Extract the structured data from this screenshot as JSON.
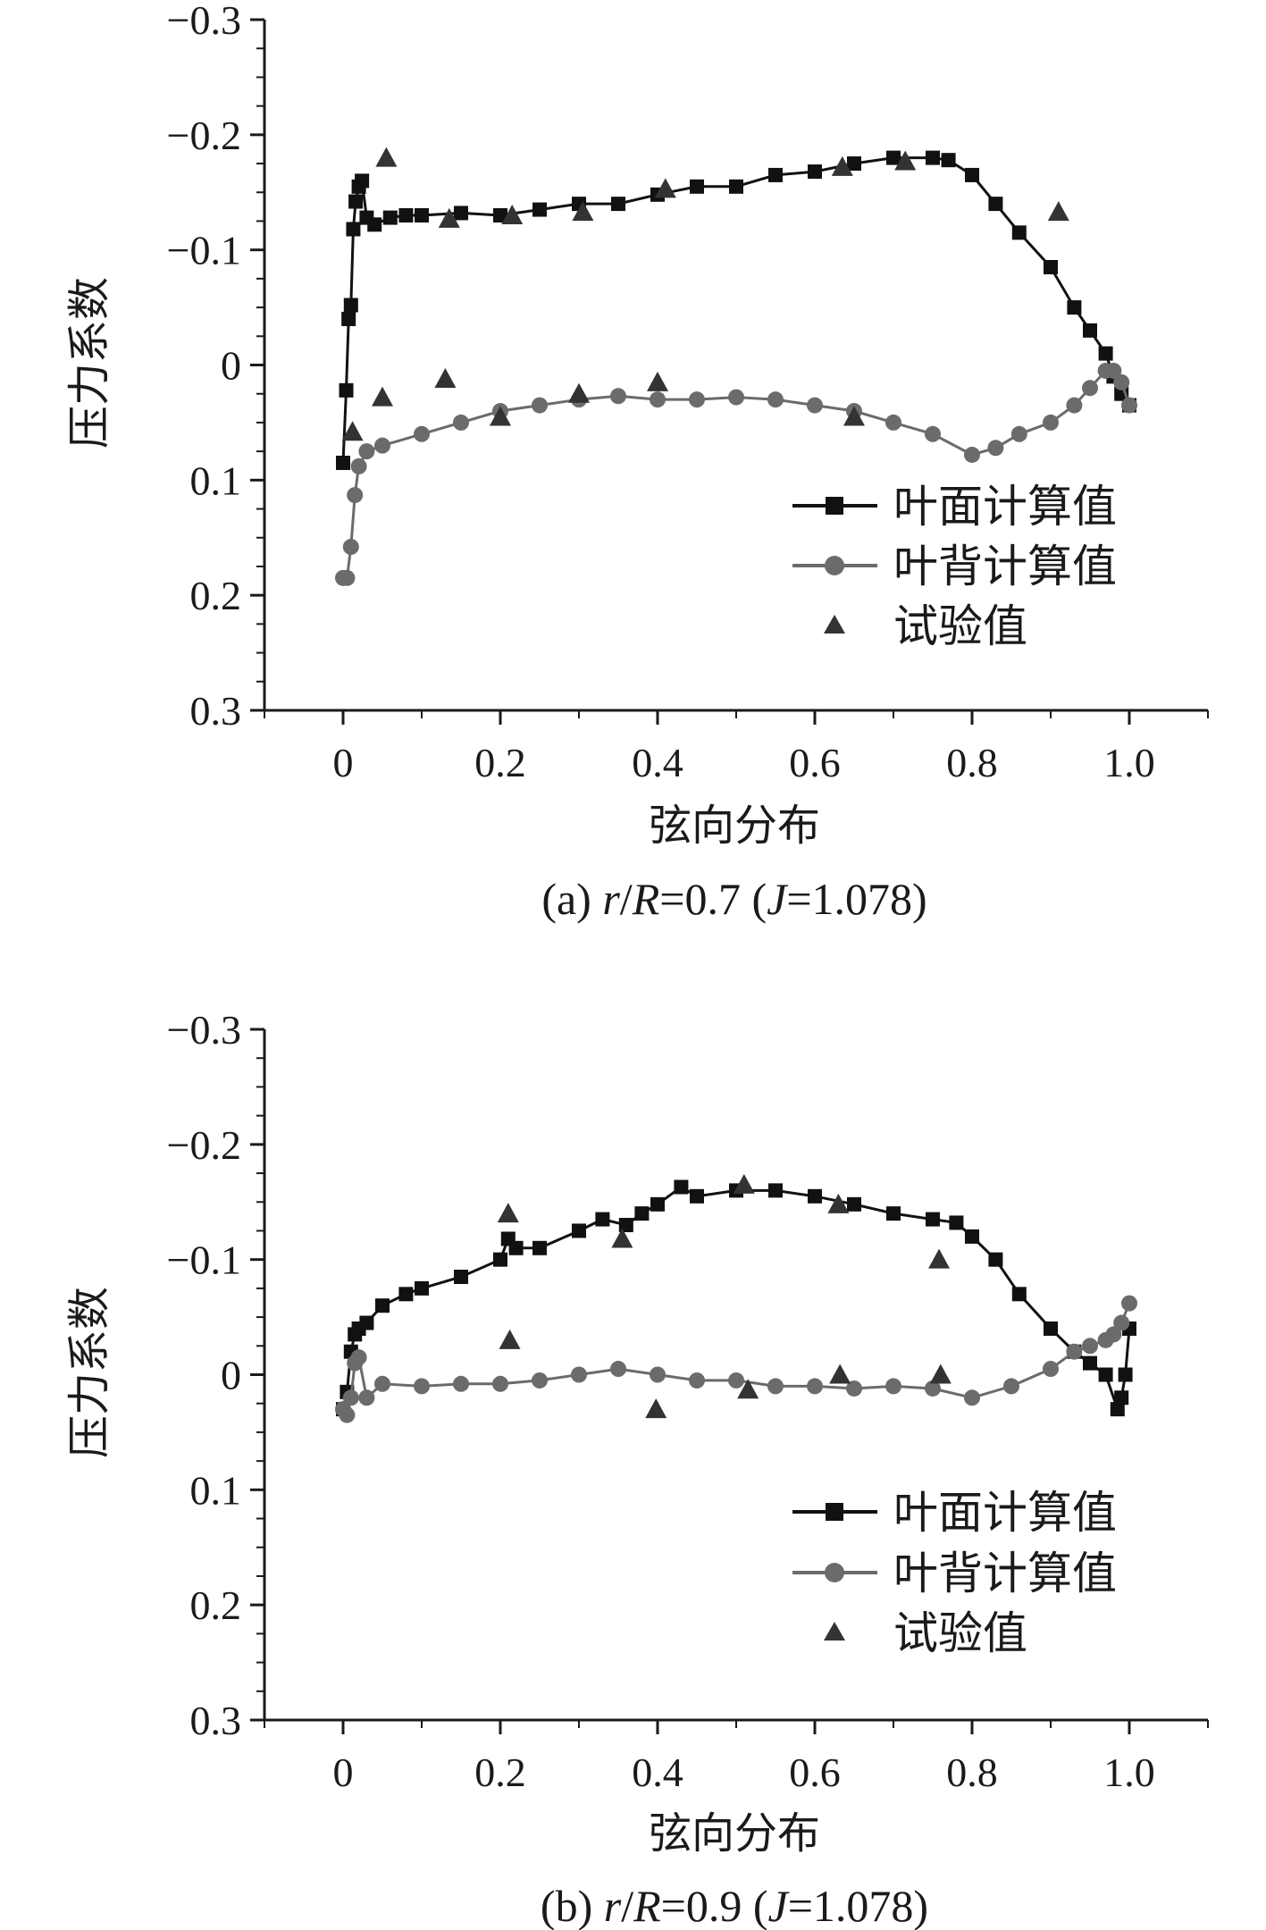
{
  "chart_data": [
    {
      "type": "line",
      "caption": "(a) r/R=0.7 (J=1.078)",
      "xlabel": "弦向分布",
      "ylabel": "压力系数",
      "xlim": [
        -0.1,
        1.1
      ],
      "ylim": [
        -0.3,
        0.3
      ],
      "y_inverted": true,
      "grid": false,
      "legend_position": "lower-right",
      "xticks": [
        {
          "value": 0,
          "label": "0"
        },
        {
          "value": 0.2,
          "label": "0.2"
        },
        {
          "value": 0.4,
          "label": "0.4"
        },
        {
          "value": 0.6,
          "label": "0.6"
        },
        {
          "value": 0.8,
          "label": "0.8"
        },
        {
          "value": 1.0,
          "label": "1.0"
        }
      ],
      "yticks": [
        {
          "value": -0.3,
          "label": "−0.3"
        },
        {
          "value": -0.2,
          "label": "−0.2"
        },
        {
          "value": -0.1,
          "label": "−0.1"
        },
        {
          "value": 0,
          "label": "0"
        },
        {
          "value": 0.1,
          "label": "0.1"
        },
        {
          "value": 0.2,
          "label": "0.2"
        },
        {
          "value": 0.3,
          "label": "0.3"
        }
      ],
      "series": [
        {
          "name": "叶面计算值",
          "marker": "square",
          "color": "#111111",
          "x": [
            0.0,
            0.004,
            0.007,
            0.01,
            0.013,
            0.016,
            0.02,
            0.024,
            0.03,
            0.04,
            0.06,
            0.08,
            0.1,
            0.15,
            0.2,
            0.25,
            0.3,
            0.35,
            0.4,
            0.45,
            0.5,
            0.55,
            0.6,
            0.65,
            0.7,
            0.75,
            0.77,
            0.8,
            0.83,
            0.86,
            0.9,
            0.93,
            0.95,
            0.97,
            0.98,
            0.99,
            1.0
          ],
          "y": [
            0.085,
            0.022,
            -0.04,
            -0.052,
            -0.118,
            -0.142,
            -0.155,
            -0.16,
            -0.128,
            -0.122,
            -0.128,
            -0.13,
            -0.13,
            -0.132,
            -0.13,
            -0.135,
            -0.14,
            -0.14,
            -0.148,
            -0.155,
            -0.155,
            -0.165,
            -0.168,
            -0.175,
            -0.18,
            -0.18,
            -0.178,
            -0.165,
            -0.14,
            -0.115,
            -0.085,
            -0.05,
            -0.03,
            -0.01,
            0.01,
            0.025,
            0.035
          ]
        },
        {
          "name": "叶背计算值",
          "marker": "circle",
          "color": "#6b6b6b",
          "x": [
            0.0,
            0.005,
            0.01,
            0.015,
            0.02,
            0.03,
            0.05,
            0.1,
            0.15,
            0.2,
            0.25,
            0.3,
            0.35,
            0.4,
            0.45,
            0.5,
            0.55,
            0.6,
            0.65,
            0.7,
            0.75,
            0.8,
            0.83,
            0.86,
            0.9,
            0.93,
            0.95,
            0.97,
            0.98,
            0.99,
            1.0
          ],
          "y": [
            0.185,
            0.185,
            0.158,
            0.113,
            0.088,
            0.075,
            0.07,
            0.06,
            0.05,
            0.04,
            0.035,
            0.03,
            0.027,
            0.03,
            0.03,
            0.028,
            0.03,
            0.035,
            0.04,
            0.05,
            0.06,
            0.078,
            0.072,
            0.06,
            0.05,
            0.035,
            0.02,
            0.005,
            0.005,
            0.015,
            0.035
          ]
        },
        {
          "name": "试验值",
          "marker": "triangle",
          "color": "#333333",
          "line": false,
          "x": [
            0.012,
            0.05,
            0.055,
            0.13,
            0.135,
            0.2,
            0.215,
            0.3,
            0.305,
            0.4,
            0.41,
            0.635,
            0.65,
            0.715,
            0.91
          ],
          "y": [
            0.058,
            0.028,
            -0.18,
            0.012,
            -0.127,
            0.045,
            -0.13,
            0.025,
            -0.133,
            0.015,
            -0.153,
            -0.172,
            0.045,
            -0.177,
            -0.133
          ]
        }
      ]
    },
    {
      "type": "line",
      "caption": "(b) r/R=0.9 (J=1.078)",
      "xlabel": "弦向分布",
      "ylabel": "压力系数",
      "xlim": [
        -0.1,
        1.1
      ],
      "ylim": [
        -0.3,
        0.3
      ],
      "y_inverted": true,
      "grid": false,
      "legend_position": "lower-right",
      "xticks": [
        {
          "value": 0,
          "label": "0"
        },
        {
          "value": 0.2,
          "label": "0.2"
        },
        {
          "value": 0.4,
          "label": "0.4"
        },
        {
          "value": 0.6,
          "label": "0.6"
        },
        {
          "value": 0.8,
          "label": "0.8"
        },
        {
          "value": 1.0,
          "label": "1.0"
        }
      ],
      "yticks": [
        {
          "value": -0.3,
          "label": "−0.3"
        },
        {
          "value": -0.2,
          "label": "−0.2"
        },
        {
          "value": -0.1,
          "label": "−0.1"
        },
        {
          "value": 0,
          "label": "0"
        },
        {
          "value": 0.1,
          "label": "0.1"
        },
        {
          "value": 0.2,
          "label": "0.2"
        },
        {
          "value": 0.3,
          "label": "0.3"
        }
      ],
      "series": [
        {
          "name": "叶面计算值",
          "marker": "square",
          "color": "#111111",
          "x": [
            0.0,
            0.005,
            0.01,
            0.015,
            0.02,
            0.03,
            0.05,
            0.08,
            0.1,
            0.15,
            0.2,
            0.21,
            0.22,
            0.25,
            0.3,
            0.33,
            0.36,
            0.38,
            0.4,
            0.43,
            0.45,
            0.5,
            0.55,
            0.6,
            0.65,
            0.7,
            0.75,
            0.78,
            0.8,
            0.83,
            0.86,
            0.9,
            0.93,
            0.95,
            0.97,
            0.985,
            0.99,
            0.995,
            1.0
          ],
          "y": [
            0.03,
            0.015,
            -0.02,
            -0.035,
            -0.04,
            -0.045,
            -0.06,
            -0.07,
            -0.075,
            -0.085,
            -0.1,
            -0.118,
            -0.11,
            -0.11,
            -0.125,
            -0.135,
            -0.13,
            -0.14,
            -0.148,
            -0.163,
            -0.155,
            -0.16,
            -0.16,
            -0.155,
            -0.148,
            -0.14,
            -0.135,
            -0.132,
            -0.12,
            -0.1,
            -0.07,
            -0.04,
            -0.02,
            -0.01,
            0.0,
            0.03,
            0.02,
            0.0,
            -0.04
          ]
        },
        {
          "name": "叶背计算值",
          "marker": "circle",
          "color": "#6b6b6b",
          "x": [
            0.0,
            0.005,
            0.01,
            0.015,
            0.02,
            0.03,
            0.05,
            0.1,
            0.15,
            0.2,
            0.25,
            0.3,
            0.35,
            0.4,
            0.45,
            0.5,
            0.55,
            0.6,
            0.65,
            0.7,
            0.75,
            0.8,
            0.85,
            0.9,
            0.93,
            0.95,
            0.97,
            0.98,
            0.99,
            1.0
          ],
          "y": [
            0.03,
            0.035,
            0.02,
            -0.01,
            -0.015,
            0.02,
            0.008,
            0.01,
            0.008,
            0.008,
            0.005,
            0.0,
            -0.005,
            0.0,
            0.005,
            0.005,
            0.01,
            0.01,
            0.012,
            0.01,
            0.012,
            0.02,
            0.01,
            -0.005,
            -0.02,
            -0.025,
            -0.03,
            -0.035,
            -0.045,
            -0.062
          ]
        },
        {
          "name": "试验值",
          "marker": "triangle",
          "color": "#333333",
          "line": false,
          "x": [
            0.21,
            0.212,
            0.355,
            0.398,
            0.51,
            0.515,
            0.63,
            0.632,
            0.758,
            0.76
          ],
          "y": [
            -0.14,
            -0.03,
            -0.118,
            0.03,
            -0.165,
            0.013,
            -0.148,
            0.0,
            -0.1,
            0.0
          ]
        }
      ]
    }
  ]
}
